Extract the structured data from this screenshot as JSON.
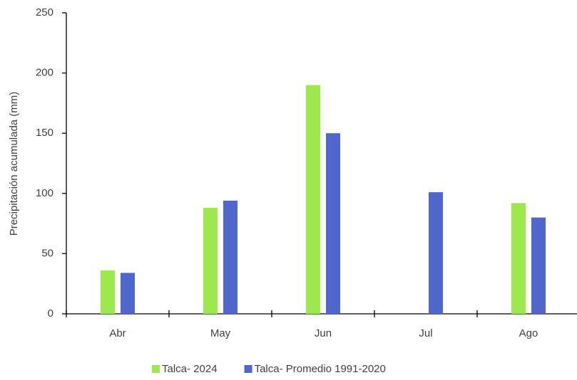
{
  "chart_data": {
    "type": "bar",
    "y_label": "Precipitación acumulada (mm)",
    "categories": [
      "Abr",
      "May",
      "Jun",
      "Jul",
      "Ago"
    ],
    "series": [
      {
        "name": "Talca- 2024",
        "color": "#9de94d",
        "values": [
          36,
          88,
          190,
          null,
          92
        ]
      },
      {
        "name": "Talca- Promedio 1991-2020",
        "color": "#4f67cc",
        "values": [
          34,
          94,
          150,
          101,
          80
        ]
      }
    ],
    "ylim": [
      0,
      250
    ],
    "yticks": [
      0,
      50,
      100,
      150,
      200,
      250
    ],
    "grid": false,
    "legend": "bottom"
  }
}
